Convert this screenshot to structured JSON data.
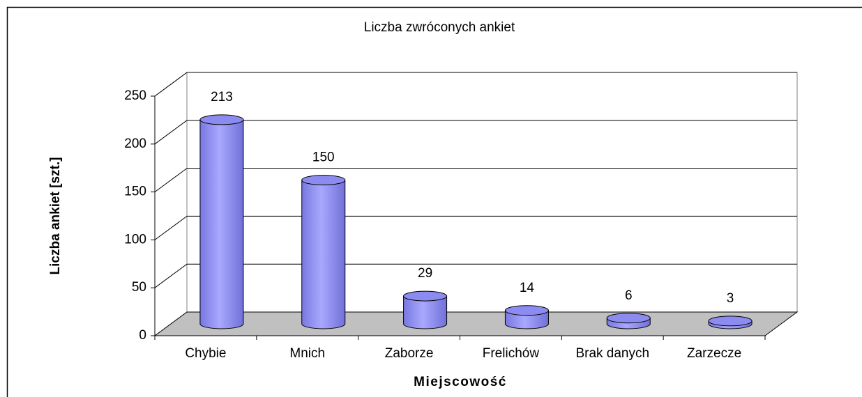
{
  "chart_data": {
    "type": "bar3d",
    "title": "Liczba zwróconych ankiet",
    "x_label": "Miejscowość",
    "y_label": "Liczba ankiet [szt.]",
    "categories": [
      "Chybie",
      "Mnich",
      "Zaborze",
      "Frelichów",
      "Brak danych",
      "Zarzecze"
    ],
    "values": [
      213,
      150,
      29,
      14,
      6,
      3
    ],
    "color": "#8c8cf0",
    "ylim": [
      0,
      250
    ],
    "yticks": [
      0,
      50,
      100,
      150,
      200,
      250
    ],
    "grid": true
  }
}
